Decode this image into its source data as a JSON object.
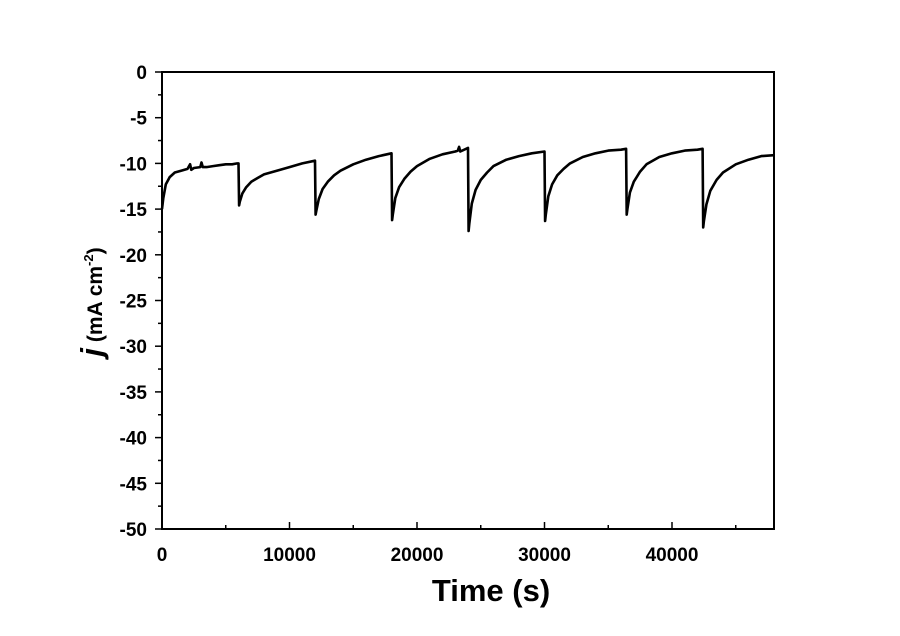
{
  "chart_data": {
    "type": "line",
    "title": "",
    "xlabel": "Time (s)",
    "ylabel": {
      "symbol": "j",
      "unit_open": " (mA cm",
      "unit_exp": "-2",
      "unit_close": ")"
    },
    "xlim": [
      0,
      48000
    ],
    "ylim": [
      -50,
      0
    ],
    "x_ticks": [
      0,
      10000,
      20000,
      30000,
      40000
    ],
    "x_tick_labels": [
      "0",
      "10000",
      "20000",
      "30000",
      "40000"
    ],
    "y_ticks": [
      0,
      -5,
      -10,
      -15,
      -20,
      -25,
      -30,
      -35,
      -40,
      -45,
      -50
    ],
    "y_tick_labels": [
      "0",
      "-5",
      "-10",
      "-15",
      "-20",
      "-25",
      "-30",
      "-35",
      "-40",
      "-45",
      "-50"
    ],
    "grid": false,
    "legend": "none",
    "line_color": "#000000",
    "series": [
      {
        "x": [
          0,
          100,
          300,
          600,
          1000,
          1500,
          2000,
          2200,
          2300,
          2500,
          3000,
          3100,
          3200,
          3500,
          4000,
          4500,
          5000,
          5500,
          5900,
          6000,
          6050,
          6100,
          6300,
          6600,
          7000,
          7500,
          8000,
          9000,
          10000,
          11000,
          12000,
          12050,
          12100,
          12300,
          12600,
          13000,
          13500,
          14000,
          15000,
          16000,
          17000,
          18000,
          18050,
          18100,
          18300,
          18600,
          19000,
          19500,
          20000,
          21000,
          22000,
          23000,
          23200,
          23300,
          23400,
          24000,
          24050,
          24100,
          24300,
          24600,
          25000,
          25500,
          26000,
          27000,
          28000,
          29000,
          30000,
          30050,
          30100,
          30300,
          30600,
          31000,
          31500,
          32000,
          33000,
          34000,
          35000,
          36000,
          36400,
          36450,
          36500,
          36700,
          37000,
          37500,
          38000,
          39000,
          40000,
          41000,
          42000,
          42400,
          42450,
          42500,
          42700,
          43000,
          43500,
          44000,
          45000,
          46000,
          47000,
          48000
        ],
        "y": [
          -15.0,
          -13.8,
          -12.3,
          -11.5,
          -11.0,
          -10.8,
          -10.6,
          -10.1,
          -10.7,
          -10.5,
          -10.4,
          -9.9,
          -10.4,
          -10.4,
          -10.3,
          -10.2,
          -10.1,
          -10.1,
          -10.0,
          -10.0,
          -14.6,
          -14.2,
          -13.3,
          -12.6,
          -12.0,
          -11.6,
          -11.2,
          -10.8,
          -10.4,
          -10.0,
          -9.7,
          -15.6,
          -15.2,
          -13.9,
          -12.8,
          -12.0,
          -11.3,
          -10.8,
          -10.1,
          -9.6,
          -9.2,
          -8.9,
          -16.2,
          -15.6,
          -13.8,
          -12.6,
          -11.7,
          -10.9,
          -10.3,
          -9.5,
          -9.0,
          -8.7,
          -8.6,
          -8.2,
          -8.7,
          -8.3,
          -17.4,
          -16.6,
          -14.4,
          -12.9,
          -11.8,
          -11.0,
          -10.3,
          -9.6,
          -9.2,
          -8.9,
          -8.7,
          -16.3,
          -15.6,
          -13.6,
          -12.3,
          -11.3,
          -10.6,
          -10.0,
          -9.3,
          -8.9,
          -8.6,
          -8.5,
          -8.4,
          -15.6,
          -15.0,
          -13.2,
          -12.0,
          -10.9,
          -10.1,
          -9.3,
          -8.9,
          -8.6,
          -8.5,
          -8.4,
          -17.0,
          -16.3,
          -14.5,
          -13.0,
          -11.8,
          -11.0,
          -10.1,
          -9.6,
          -9.2,
          -9.1
        ]
      }
    ]
  }
}
